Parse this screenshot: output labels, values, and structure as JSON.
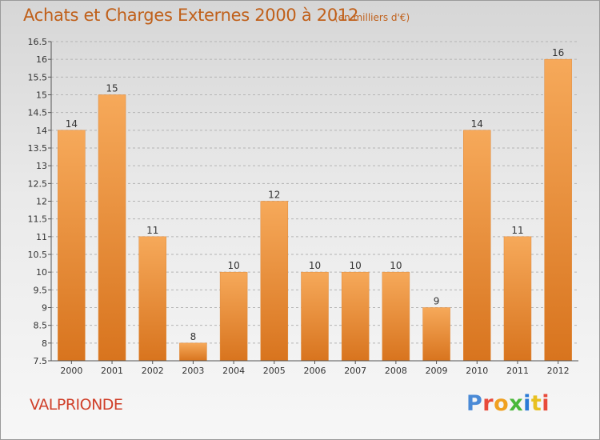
{
  "header": {
    "title": "Achats et Charges Externes 2000 à 2012",
    "unit": "(en milliers d'€)"
  },
  "footer": {
    "commune": "VALPRIONDE",
    "logo": {
      "text": "Proxiti",
      "letter_colors": [
        "#4a8ad6",
        "#e84a3a",
        "#f0a020",
        "#4ab83a",
        "#2a7ad6",
        "#e8c020",
        "#e84a3a"
      ]
    }
  },
  "colors": {
    "bar_light": "#f6a95a",
    "bar_dark": "#d8741e",
    "grid": "#b4b4b4",
    "axis_text": "#333333"
  },
  "chart_data": {
    "type": "bar",
    "categories": [
      "2000",
      "2001",
      "2002",
      "2003",
      "2004",
      "2005",
      "2006",
      "2007",
      "2008",
      "2009",
      "2010",
      "2011",
      "2012"
    ],
    "values": [
      14,
      15,
      11,
      8,
      10,
      12,
      10,
      10,
      10,
      9,
      14,
      11,
      16
    ],
    "data_labels": [
      "14",
      "15",
      "11",
      "8",
      "10",
      "12",
      "10",
      "10",
      "10",
      "9",
      "14",
      "11",
      "16"
    ],
    "ylim": [
      7.5,
      16.5
    ],
    "yticks": [
      7.5,
      8,
      8.5,
      9,
      9.5,
      10,
      10.5,
      11,
      11.5,
      12,
      12.5,
      13,
      13.5,
      14,
      14.5,
      15,
      15.5,
      16,
      16.5
    ],
    "ytick_labels": [
      "7.5",
      "8",
      "8.5",
      "9",
      "9.5",
      "10",
      "10.5",
      "11",
      "11.5",
      "12",
      "12.5",
      "13",
      "13.5",
      "14",
      "14.5",
      "15",
      "15.5",
      "16",
      "16.5"
    ],
    "grid": true,
    "grid_style": "dashed",
    "xlabel": "",
    "ylabel": ""
  }
}
